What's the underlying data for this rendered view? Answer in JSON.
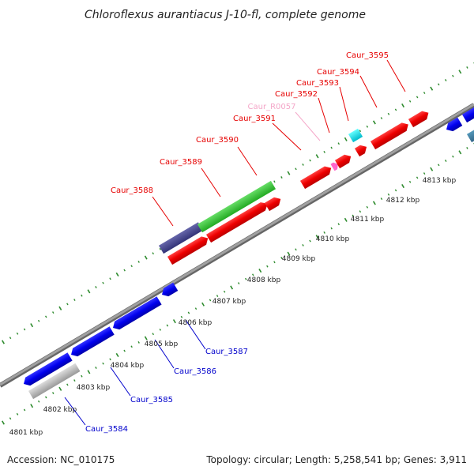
{
  "title": "Chloroflexus aurantiacus J-10-fl, complete genome",
  "footer": {
    "accession": "Accession: NC_010175",
    "summary": "Topology: circular; Length: 5,258,541 bp; Genes: 3,911"
  },
  "kbp_ticks": [
    "4801 kbp",
    "4802 kbp",
    "4803 kbp",
    "4804 kbp",
    "4805 kbp",
    "4806 kbp",
    "4807 kbp",
    "4808 kbp",
    "4809 kbp",
    "4810 kbp",
    "4811 kbp",
    "4812 kbp",
    "4813 kbp"
  ],
  "upper_genes": [
    {
      "id": "Caur_3588",
      "color": "#e60000"
    },
    {
      "id": "Caur_3589",
      "color": "#e60000"
    },
    {
      "id": "Caur_3590",
      "color": "#e60000"
    },
    {
      "id": "Caur_3591",
      "color": "#e60000"
    },
    {
      "id": "Caur_R0057",
      "color": "#f4a6c8"
    },
    {
      "id": "Caur_3592",
      "color": "#e60000"
    },
    {
      "id": "Caur_3593",
      "color": "#e60000"
    },
    {
      "id": "Caur_3594",
      "color": "#e60000"
    },
    {
      "id": "Caur_3595",
      "color": "#e60000"
    }
  ],
  "lower_genes": [
    {
      "id": "Caur_3584",
      "color": "#0000cc"
    },
    {
      "id": "Caur_3585",
      "color": "#0000cc"
    },
    {
      "id": "Caur_3586",
      "color": "#0000cc"
    },
    {
      "id": "Caur_3587",
      "color": "#0000cc"
    }
  ],
  "colors": {
    "backbone": "#8a8a8a",
    "dotted_ring": "#2e8b2e",
    "forward_gene": "#ff0000",
    "reverse_gene": "#0000ff",
    "highlight_green": "#33cc33",
    "highlight_purple": "#4b4b99",
    "rna_cyan": "#00e5ee",
    "rna_pink": "#ff66cc",
    "pseudo_gray": "#bbbbbb"
  }
}
